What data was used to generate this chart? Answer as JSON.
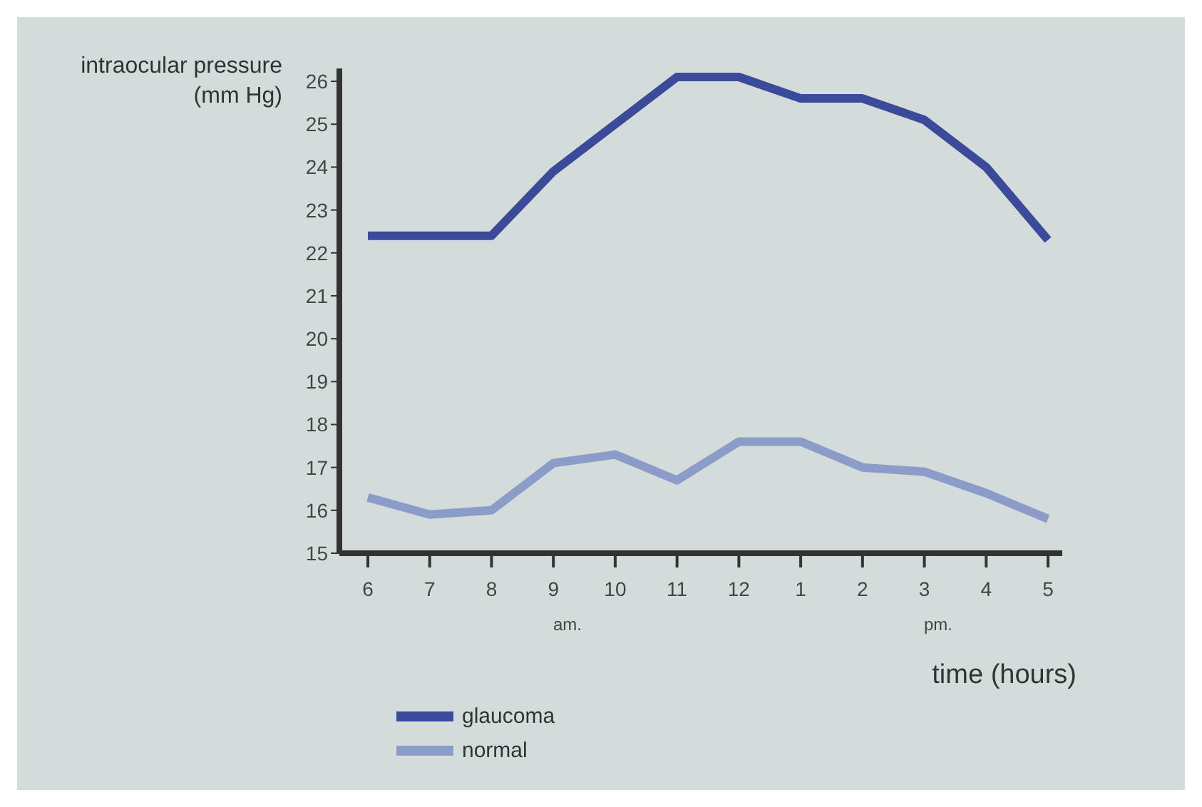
{
  "chart_data": {
    "type": "line",
    "ylabel": "intraocular pressure (mm Hg)",
    "xlabel": "time (hours)",
    "categories": [
      "6",
      "7",
      "8",
      "9",
      "10",
      "11",
      "12",
      "1",
      "2",
      "3",
      "4",
      "5"
    ],
    "series": [
      {
        "name": "glaucoma",
        "color": "#3b4a99",
        "values": [
          22.4,
          22.4,
          22.4,
          23.9,
          25.0,
          26.1,
          26.1,
          25.6,
          25.6,
          25.1,
          24.0,
          22.3
        ]
      },
      {
        "name": "normal",
        "color": "#8b9cc9",
        "values": [
          16.3,
          15.9,
          16.0,
          17.1,
          17.3,
          16.7,
          17.6,
          17.6,
          17.0,
          16.9,
          16.4,
          15.8
        ]
      }
    ],
    "ylim": [
      15,
      26.3
    ],
    "yticks": [
      15,
      16,
      17,
      18,
      19,
      20,
      21,
      22,
      23,
      24,
      25,
      26
    ],
    "annotations": [
      "am.",
      "pm."
    ],
    "legend": "bottom left",
    "grid": false,
    "marker": "none",
    "line_style": "solid"
  }
}
